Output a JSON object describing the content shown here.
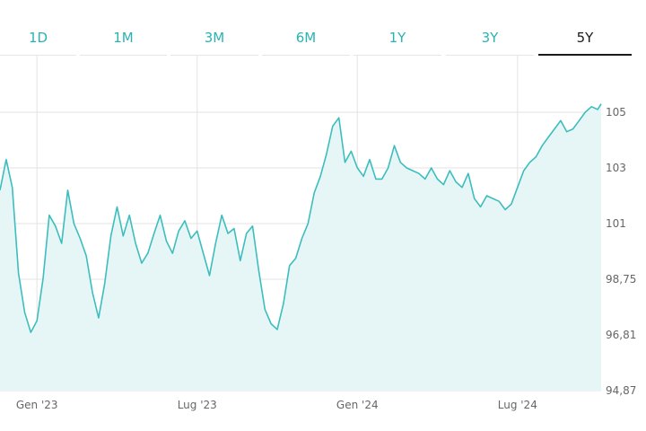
{
  "timeframe_tabs": [
    {
      "label": "1D",
      "active": false
    },
    {
      "label": "1M",
      "active": false
    },
    {
      "label": "3M",
      "active": false
    },
    {
      "label": "6M",
      "active": false
    },
    {
      "label": "1Y",
      "active": false
    },
    {
      "label": "3Y",
      "active": false
    },
    {
      "label": "5Y",
      "active": true
    }
  ],
  "colors": {
    "accent": "#2bb3b3",
    "line": "#3dbdbd",
    "fill": "#e6f6f6",
    "grid": "#e3e3e3",
    "tick_text": "#666666",
    "active_tab": "#1a1a1a"
  },
  "chart_data": {
    "type": "area",
    "title": "",
    "xlabel": "",
    "ylabel": "",
    "ylim": [
      94.87,
      106.2
    ],
    "xlim": [
      "2022-11-21",
      "2024-10-04"
    ],
    "grid": true,
    "y_ticks": [
      {
        "value": 94.87,
        "label": "94,87"
      },
      {
        "value": 96.81,
        "label": "96,81"
      },
      {
        "value": 98.75,
        "label": "98,75"
      },
      {
        "value": 101,
        "label": "101"
      },
      {
        "value": 103,
        "label": "103"
      },
      {
        "value": 105,
        "label": "105"
      }
    ],
    "x_ticks": [
      {
        "date": "2023-01-02",
        "label": "Gen '23"
      },
      {
        "date": "2023-07-03",
        "label": "Lug '23"
      },
      {
        "date": "2024-01-01",
        "label": "Gen '24"
      },
      {
        "date": "2024-07-01",
        "label": "Lug '24"
      }
    ],
    "series": [
      {
        "x": [
          "2022-11-21",
          "2022-11-28",
          "2022-12-05",
          "2022-12-12",
          "2022-12-19",
          "2022-12-26",
          "2023-01-02",
          "2023-01-09",
          "2023-01-16",
          "2023-01-23",
          "2023-01-30",
          "2023-02-06",
          "2023-02-13",
          "2023-02-20",
          "2023-02-27",
          "2023-03-06",
          "2023-03-13",
          "2023-03-20",
          "2023-03-27",
          "2023-04-03",
          "2023-04-10",
          "2023-04-17",
          "2023-04-24",
          "2023-05-01",
          "2023-05-08",
          "2023-05-15",
          "2023-05-22",
          "2023-05-29",
          "2023-06-05",
          "2023-06-12",
          "2023-06-19",
          "2023-06-26",
          "2023-07-03",
          "2023-07-10",
          "2023-07-17",
          "2023-07-24",
          "2023-07-31",
          "2023-08-07",
          "2023-08-14",
          "2023-08-21",
          "2023-08-28",
          "2023-09-04",
          "2023-09-11",
          "2023-09-18",
          "2023-09-25",
          "2023-10-02",
          "2023-10-09",
          "2023-10-16",
          "2023-10-23",
          "2023-10-30",
          "2023-11-06",
          "2023-11-13",
          "2023-11-20",
          "2023-11-27",
          "2023-12-04",
          "2023-12-11",
          "2023-12-18",
          "2023-12-25",
          "2024-01-01",
          "2024-01-08",
          "2024-01-15",
          "2024-01-22",
          "2024-01-29",
          "2024-02-05",
          "2024-02-12",
          "2024-02-19",
          "2024-02-26",
          "2024-03-04",
          "2024-03-11",
          "2024-03-18",
          "2024-03-25",
          "2024-04-01",
          "2024-04-08",
          "2024-04-15",
          "2024-04-22",
          "2024-04-29",
          "2024-05-06",
          "2024-05-13",
          "2024-05-20",
          "2024-05-27",
          "2024-06-03",
          "2024-06-10",
          "2024-06-17",
          "2024-06-24",
          "2024-07-01",
          "2024-07-08",
          "2024-07-15",
          "2024-07-22",
          "2024-07-29",
          "2024-08-05",
          "2024-08-12",
          "2024-08-19",
          "2024-08-26",
          "2024-09-02",
          "2024-09-09",
          "2024-09-16",
          "2024-09-23",
          "2024-09-30",
          "2024-10-04"
        ],
        "y": [
          102.2,
          103.3,
          102.3,
          99.0,
          97.6,
          96.9,
          97.3,
          98.8,
          101.3,
          100.9,
          100.2,
          102.2,
          101.0,
          100.4,
          99.7,
          98.3,
          97.4,
          98.6,
          100.5,
          101.6,
          100.5,
          101.3,
          100.2,
          99.4,
          99.8,
          100.6,
          101.3,
          100.3,
          99.8,
          100.7,
          101.1,
          100.4,
          100.7,
          99.8,
          98.9,
          100.2,
          101.3,
          100.6,
          100.8,
          99.5,
          100.6,
          100.9,
          99.1,
          97.7,
          97.2,
          97.0,
          97.9,
          99.3,
          99.6,
          100.4,
          101.0,
          102.1,
          102.7,
          103.5,
          104.5,
          104.8,
          103.2,
          103.6,
          103.0,
          102.7,
          103.3,
          102.6,
          102.6,
          103.0,
          103.8,
          103.2,
          103.0,
          102.9,
          102.8,
          102.6,
          103.0,
          102.6,
          102.4,
          102.9,
          102.5,
          102.3,
          102.8,
          101.9,
          101.6,
          102.0,
          101.9,
          101.8,
          101.5,
          101.7,
          102.3,
          102.9,
          103.2,
          103.4,
          103.8,
          104.1,
          104.4,
          104.7,
          104.3,
          104.4,
          104.7,
          105.0,
          105.2,
          105.1,
          105.3
        ]
      }
    ]
  }
}
